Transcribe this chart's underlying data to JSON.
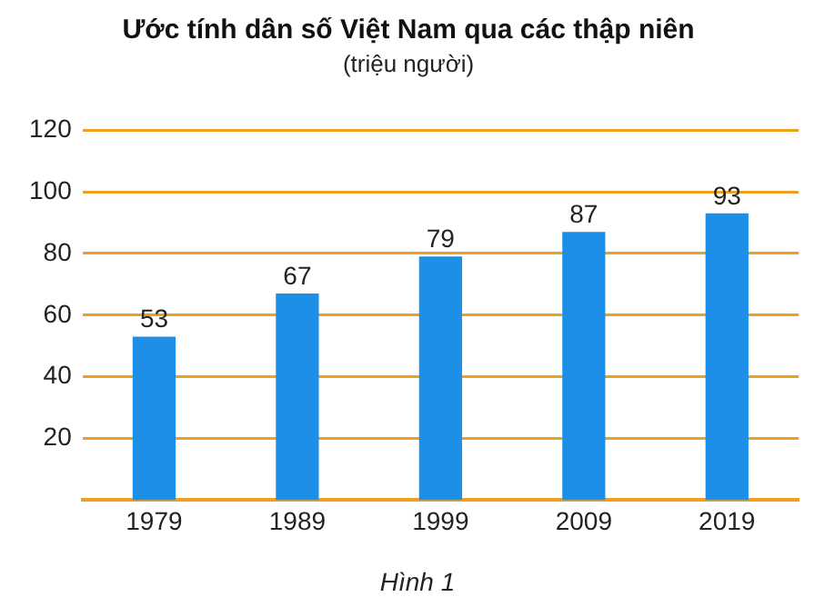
{
  "chart_data": {
    "type": "bar",
    "title": "Ước tính dân số Việt Nam qua các thập niên",
    "subtitle": "(triệu người)",
    "categories": [
      "1979",
      "1989",
      "1999",
      "2009",
      "2019"
    ],
    "values": [
      53,
      67,
      79,
      87,
      93
    ],
    "color": "#1e8fe6",
    "ylim": [
      0,
      120
    ],
    "yticks": [
      20,
      40,
      60,
      80,
      100,
      120
    ],
    "grid": "y",
    "data_labels": true,
    "annotations": [
      "Hình 1"
    ]
  }
}
